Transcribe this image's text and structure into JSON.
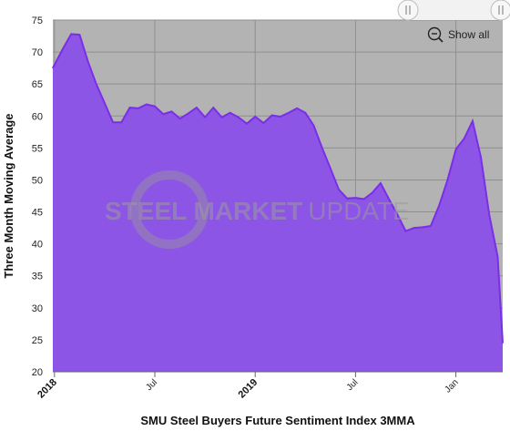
{
  "chart_data": {
    "type": "area",
    "xlabel": "SMU Steel Buyers Future Sentiment Index 3MMA",
    "ylabel": "Three Month Moving Average",
    "ylim": [
      20,
      75
    ],
    "yticks": [
      20,
      25,
      30,
      35,
      40,
      45,
      50,
      55,
      60,
      65,
      70,
      75
    ],
    "xlim": [
      -0.1,
      26.8
    ],
    "xticks": [
      {
        "label": "2018",
        "x": 0,
        "major": true
      },
      {
        "label": "Jul",
        "x": 6,
        "major": false
      },
      {
        "label": "2019",
        "x": 12,
        "major": true
      },
      {
        "label": "Jul",
        "x": 18,
        "major": false
      },
      {
        "label": "Jan",
        "x": 24,
        "major": false
      }
    ],
    "grid": true,
    "x": [
      -0.1,
      0.5,
      1.0,
      1.5,
      2.0,
      2.5,
      3.0,
      3.5,
      4.0,
      4.5,
      5.0,
      5.5,
      6.0,
      6.5,
      7.0,
      7.5,
      8.0,
      8.5,
      9.0,
      9.5,
      10.0,
      10.5,
      11.0,
      11.5,
      12.0,
      12.5,
      13.0,
      13.5,
      14.0,
      14.5,
      15.0,
      15.5,
      16.0,
      16.5,
      17.0,
      17.5,
      18.0,
      18.5,
      19.0,
      19.5,
      20.0,
      20.5,
      21.0,
      21.5,
      22.0,
      22.5,
      23.0,
      23.5,
      24.0,
      24.5,
      25.0,
      25.5,
      26.0,
      26.5,
      26.8
    ],
    "values": [
      67.5,
      70.5,
      72.8,
      72.7,
      68.5,
      65.0,
      62.0,
      59.0,
      59.0,
      61.3,
      61.2,
      61.8,
      61.5,
      60.3,
      60.7,
      59.6,
      60.4,
      61.3,
      59.8,
      61.3,
      59.8,
      60.5,
      59.8,
      58.8,
      59.9,
      58.9,
      60.1,
      59.9,
      60.5,
      61.2,
      60.5,
      58.5,
      55.0,
      51.8,
      48.5,
      47.1,
      47.2,
      47.0,
      48.0,
      49.5,
      47.0,
      44.6,
      42.0,
      42.5,
      42.6,
      42.8,
      46.0,
      50.0,
      54.8,
      56.5,
      59.2,
      53.5,
      44.5,
      38.0,
      24.5
    ],
    "series_color": "#7a2ee8",
    "fill_color": "#8d55e6",
    "plot_background": "#b3b3b3"
  },
  "watermark": {
    "strong": "STEEL MARKET",
    "light": "UPDATE"
  },
  "controls": {
    "show_all_label": "Show all",
    "zoom_icon": "zoom-out-icon",
    "handle_icon": "grip-handle-icon"
  }
}
